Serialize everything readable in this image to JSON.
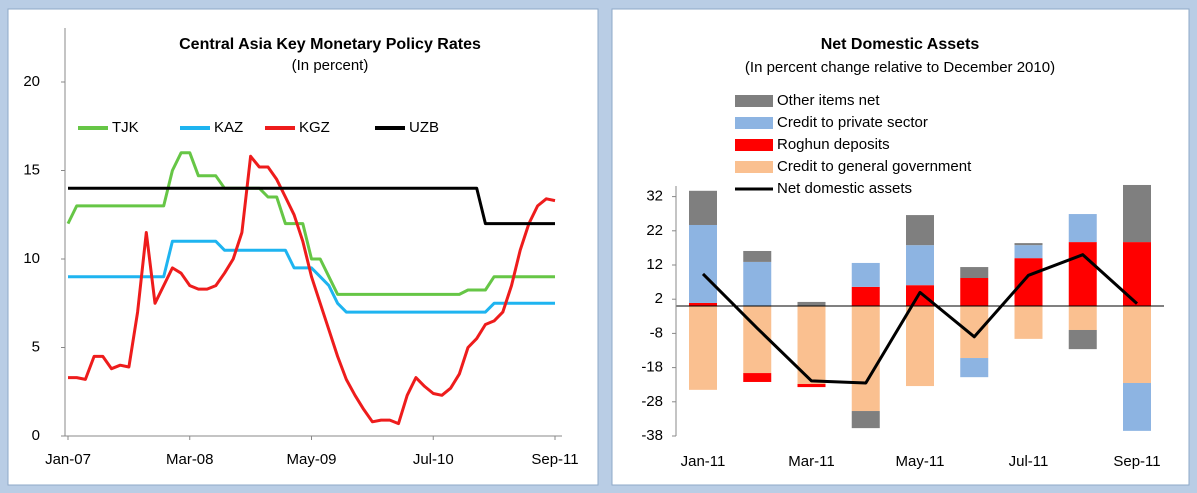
{
  "chart_data": [
    {
      "type": "line",
      "title": "Central Asia Key Monetary Policy Rates",
      "subtitle": "(In  percent)",
      "categories": [
        "Jan-07",
        null,
        null,
        null,
        null,
        null,
        null,
        null,
        null,
        null,
        null,
        null,
        null,
        null,
        "Mar-08",
        null,
        null,
        null,
        null,
        null,
        null,
        null,
        null,
        null,
        null,
        null,
        null,
        null,
        "May-09",
        null,
        null,
        null,
        null,
        null,
        null,
        null,
        null,
        null,
        null,
        null,
        null,
        null,
        "Jul-10",
        null,
        null,
        null,
        null,
        null,
        null,
        null,
        null,
        null,
        null,
        null,
        null,
        null,
        "Sep-11"
      ],
      "ylim": [
        0,
        20
      ],
      "yticks": [
        0,
        5,
        10,
        15,
        20
      ],
      "series": [
        {
          "name": "TJK",
          "color": "#66c646",
          "values": [
            12,
            13,
            13,
            13,
            13,
            13,
            13,
            13,
            13,
            13,
            13,
            13,
            15,
            16,
            16,
            14.7,
            14.7,
            14.7,
            14,
            14,
            14,
            14,
            14,
            13.5,
            13.5,
            12,
            12,
            12,
            10,
            10,
            9,
            8,
            8,
            8,
            8,
            8,
            8,
            8,
            8,
            8,
            8,
            8,
            8,
            8,
            8,
            8,
            8.25,
            8.25,
            8.25,
            9,
            9,
            9,
            9,
            9,
            9,
            9,
            9
          ]
        },
        {
          "name": "KAZ",
          "color": "#1eb4f0",
          "values": [
            9,
            9,
            9,
            9,
            9,
            9,
            9,
            9,
            9,
            9,
            9,
            9,
            11,
            11,
            11,
            11,
            11,
            11,
            10.5,
            10.5,
            10.5,
            10.5,
            10.5,
            10.5,
            10.5,
            10.5,
            9.5,
            9.5,
            9.5,
            9,
            8.5,
            7.5,
            7,
            7,
            7,
            7,
            7,
            7,
            7,
            7,
            7,
            7,
            7,
            7,
            7,
            7,
            7,
            7,
            7,
            7.5,
            7.5,
            7.5,
            7.5,
            7.5,
            7.5,
            7.5,
            7.5
          ]
        },
        {
          "name": "KGZ",
          "color": "#ee1c1c",
          "values": [
            3.3,
            3.3,
            3.2,
            4.5,
            4.5,
            3.8,
            4,
            3.9,
            7,
            11.5,
            7.5,
            8.5,
            9.5,
            9.2,
            8.5,
            8.3,
            8.3,
            8.5,
            9.2,
            10,
            11.5,
            15.8,
            15.2,
            15.2,
            14.5,
            13.5,
            12.5,
            11,
            9,
            7.5,
            6,
            4.5,
            3.2,
            2.3,
            1.5,
            0.8,
            0.9,
            0.9,
            0.7,
            2.3,
            3.3,
            2.8,
            2.4,
            2.3,
            2.7,
            3.5,
            5,
            5.5,
            6.3,
            6.5,
            7,
            8.5,
            10.5,
            12,
            13,
            13.4,
            13.3
          ]
        },
        {
          "name": "UZB",
          "color": "#000000",
          "values": [
            14,
            14,
            14,
            14,
            14,
            14,
            14,
            14,
            14,
            14,
            14,
            14,
            14,
            14,
            14,
            14,
            14,
            14,
            14,
            14,
            14,
            14,
            14,
            14,
            14,
            14,
            14,
            14,
            14,
            14,
            14,
            14,
            14,
            14,
            14,
            14,
            14,
            14,
            14,
            14,
            14,
            14,
            14,
            14,
            14,
            14,
            14,
            14,
            12,
            12,
            12,
            12,
            12,
            12,
            12,
            12,
            12
          ]
        }
      ]
    },
    {
      "type": "bar",
      "stacked": true,
      "title": "Net Domestic Assets",
      "subtitle": "(In percent change relative to December 2010)",
      "categories": [
        "Jan-11",
        null,
        "Mar-11",
        null,
        "May-11",
        null,
        "Jul-11",
        null,
        "Sep-11"
      ],
      "ylim": [
        -38,
        42
      ],
      "yticks": [
        -38,
        -28,
        -18,
        -8,
        2,
        12,
        22,
        32
      ],
      "series": [
        {
          "name": "Other items net",
          "color": "#7f7f7f",
          "values": [
            10,
            3.2,
            1.2,
            -5,
            8.8,
            3.2,
            0.6,
            -5.6,
            16.7
          ]
        },
        {
          "name": "Credit to private sector",
          "color": "#8db4e2",
          "values": [
            22.8,
            12.9,
            0,
            7,
            11.7,
            -5.6,
            3.8,
            8.2,
            -14
          ]
        },
        {
          "name": "Roghun deposits",
          "color": "#ff0000",
          "values": [
            0.9,
            -2.6,
            -0.9,
            5.6,
            6.1,
            8.2,
            14,
            18.7,
            18.7
          ]
        },
        {
          "name": "Credit to general government",
          "color": "#fac090",
          "values": [
            -24.5,
            -19.6,
            -22.8,
            -30.7,
            -23.4,
            -15.2,
            -9.6,
            -7,
            -22.5
          ]
        },
        {
          "name": "Net domestic assets",
          "color": "#000000",
          "type": "line",
          "values": [
            9.4,
            -6.5,
            -21.9,
            -22.5,
            4,
            -9,
            9,
            15,
            0.7
          ]
        }
      ]
    }
  ]
}
